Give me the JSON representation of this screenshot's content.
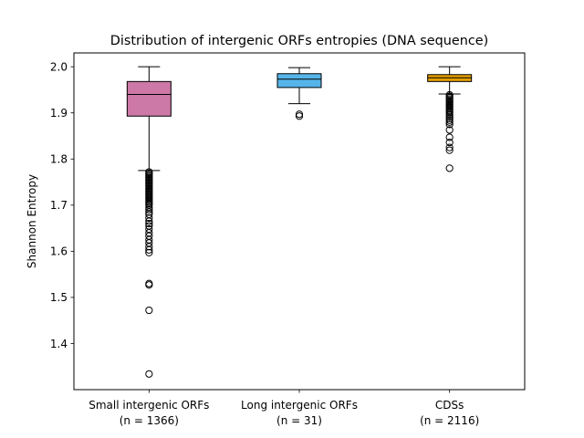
{
  "chart_data": {
    "type": "boxplot",
    "title": "Distribution of intergenic ORFs entropies (DNA sequence)",
    "xlabel": "",
    "ylabel": "Shannon Entropy",
    "ylim": [
      1.3,
      2.03
    ],
    "yticks": [
      "1.4",
      "1.5",
      "1.6",
      "1.7",
      "1.8",
      "1.9",
      "2.0"
    ],
    "grid": false,
    "categories": [
      {
        "line1": "Small intergenic ORFs",
        "line2": "(n = 1366)",
        "color": "#cc79a7",
        "q1": 1.893,
        "median": 1.94,
        "q3": 1.968,
        "whisker_low": 1.775,
        "whisker_high": 2.0,
        "outliers": [
          1.772,
          1.769,
          1.766,
          1.763,
          1.76,
          1.757,
          1.754,
          1.751,
          1.748,
          1.745,
          1.742,
          1.739,
          1.736,
          1.733,
          1.73,
          1.727,
          1.724,
          1.721,
          1.718,
          1.715,
          1.712,
          1.709,
          1.706,
          1.703,
          1.7,
          1.695,
          1.69,
          1.685,
          1.68,
          1.672,
          1.665,
          1.66,
          1.655,
          1.648,
          1.64,
          1.633,
          1.625,
          1.618,
          1.61,
          1.603,
          1.597,
          1.53,
          1.527,
          1.472,
          1.334
        ]
      },
      {
        "line1": "Long intergenic ORFs",
        "line2": "(n = 31)",
        "color": "#56b4e9",
        "q1": 1.955,
        "median": 1.973,
        "q3": 1.985,
        "whisker_low": 1.92,
        "whisker_high": 1.998,
        "outliers": [
          1.897,
          1.893
        ]
      },
      {
        "line1": "CDSs",
        "line2": "(n = 2116)",
        "color": "#e69f00",
        "q1": 1.968,
        "median": 1.976,
        "q3": 1.983,
        "whisker_low": 1.941,
        "whisker_high": 2.0,
        "outliers": [
          1.939,
          1.936,
          1.933,
          1.93,
          1.927,
          1.924,
          1.921,
          1.918,
          1.915,
          1.912,
          1.909,
          1.906,
          1.903,
          1.9,
          1.896,
          1.892,
          1.888,
          1.884,
          1.88,
          1.875,
          1.863,
          1.847,
          1.836,
          1.825,
          1.819,
          1.78
        ]
      }
    ]
  }
}
